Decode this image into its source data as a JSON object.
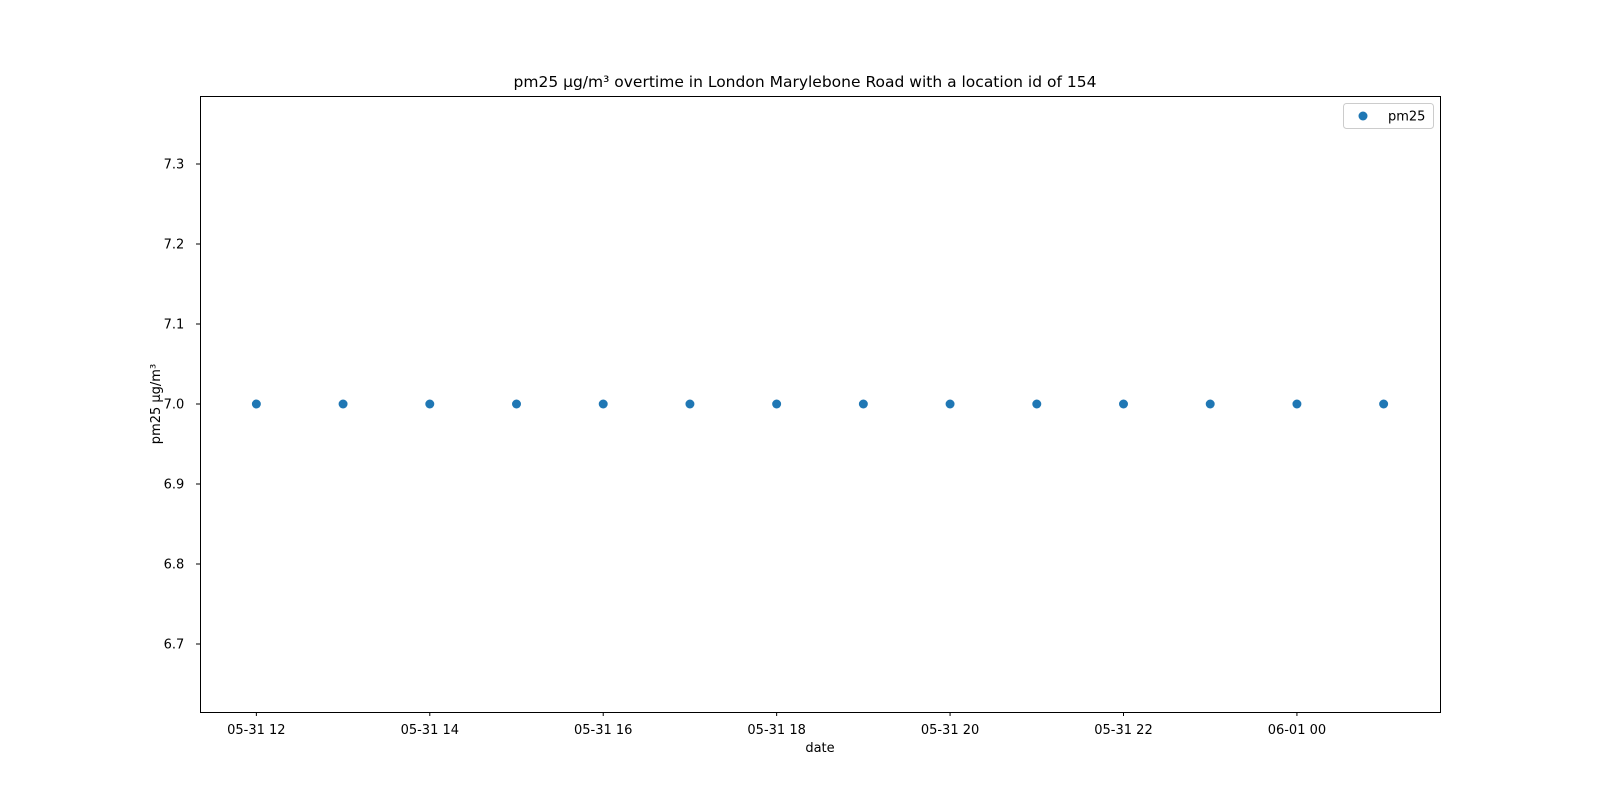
{
  "chart_data": {
    "type": "scatter",
    "title": "pm25 µg/m³ overtime in London Marylebone Road with a location id of 154",
    "xlabel": "date",
    "ylabel": "pm25 µg/m³",
    "x": [
      "2020-05-31 12:00",
      "2020-05-31 13:00",
      "2020-05-31 14:00",
      "2020-05-31 15:00",
      "2020-05-31 16:00",
      "2020-05-31 17:00",
      "2020-05-31 18:00",
      "2020-05-31 19:00",
      "2020-05-31 20:00",
      "2020-05-31 21:00",
      "2020-05-31 22:00",
      "2020-05-31 23:00",
      "2020-06-01 00:00",
      "2020-06-01 01:00"
    ],
    "series": [
      {
        "name": "pm25",
        "values": [
          7.0,
          7.0,
          7.0,
          7.0,
          7.0,
          7.0,
          7.0,
          7.0,
          7.0,
          7.0,
          7.0,
          7.0,
          7.0,
          7.0
        ],
        "color": "#1f77b4"
      }
    ],
    "xlim": [
      "2020-05-31 11:21",
      "2020-06-01 01:39"
    ],
    "ylim": [
      6.615,
      7.385
    ],
    "xticks": [
      {
        "value": "2020-05-31 12:00",
        "label": "05-31 12"
      },
      {
        "value": "2020-05-31 14:00",
        "label": "05-31 14"
      },
      {
        "value": "2020-05-31 16:00",
        "label": "05-31 16"
      },
      {
        "value": "2020-05-31 18:00",
        "label": "05-31 18"
      },
      {
        "value": "2020-05-31 20:00",
        "label": "05-31 20"
      },
      {
        "value": "2020-05-31 22:00",
        "label": "05-31 22"
      },
      {
        "value": "2020-06-01 00:00",
        "label": "06-01 00"
      }
    ],
    "yticks": [
      6.7,
      6.8,
      6.9,
      7.0,
      7.1,
      7.2,
      7.3
    ],
    "grid": false,
    "legend": {
      "position": "top-right",
      "entries": [
        "pm25"
      ]
    }
  }
}
